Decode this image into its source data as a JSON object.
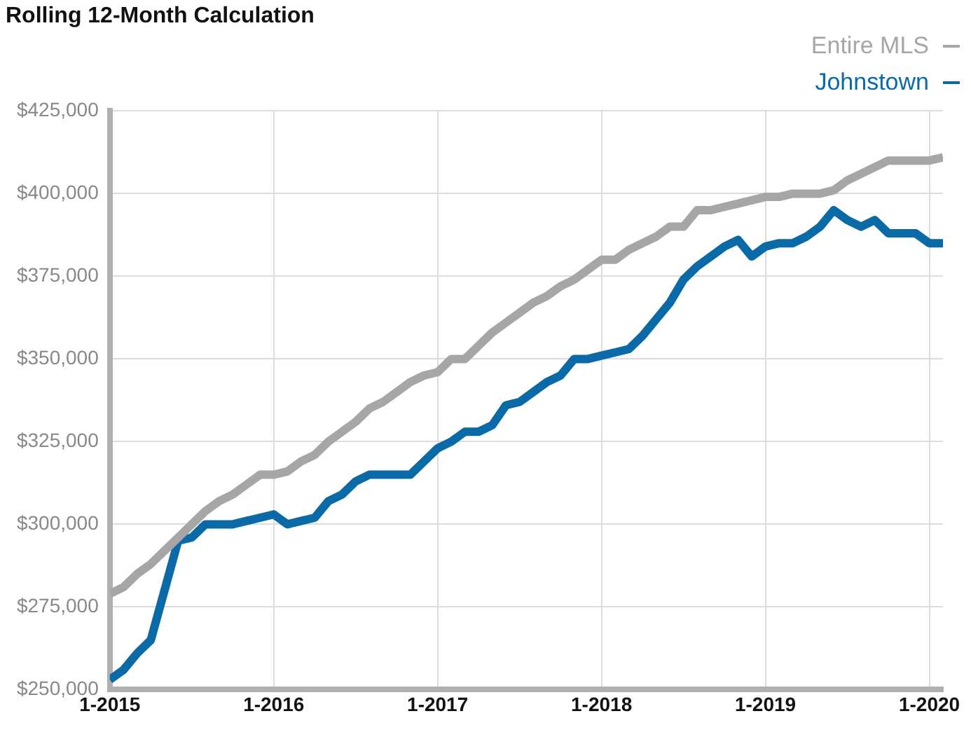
{
  "chart_data": {
    "type": "line",
    "title": "Rolling 12-Month Calculation",
    "x": [
      "2015-01",
      "2015-02",
      "2015-03",
      "2015-04",
      "2015-05",
      "2015-06",
      "2015-07",
      "2015-08",
      "2015-09",
      "2015-10",
      "2015-11",
      "2015-12",
      "2016-01",
      "2016-02",
      "2016-03",
      "2016-04",
      "2016-05",
      "2016-06",
      "2016-07",
      "2016-08",
      "2016-09",
      "2016-10",
      "2016-11",
      "2016-12",
      "2017-01",
      "2017-02",
      "2017-03",
      "2017-04",
      "2017-05",
      "2017-06",
      "2017-07",
      "2017-08",
      "2017-09",
      "2017-10",
      "2017-11",
      "2017-12",
      "2018-01",
      "2018-02",
      "2018-03",
      "2018-04",
      "2018-05",
      "2018-06",
      "2018-07",
      "2018-08",
      "2018-09",
      "2018-10",
      "2018-11",
      "2018-12",
      "2019-01",
      "2019-02",
      "2019-03",
      "2019-04",
      "2019-05",
      "2019-06",
      "2019-07",
      "2019-08",
      "2019-09",
      "2019-10",
      "2019-11",
      "2019-12",
      "2020-01",
      "2020-02"
    ],
    "series": [
      {
        "name": "Entire MLS",
        "color": "#a6a6a6",
        "values": [
          279000,
          281000,
          285000,
          288000,
          292000,
          296000,
          300000,
          304000,
          307000,
          309000,
          312000,
          315000,
          315000,
          316000,
          319000,
          321000,
          325000,
          328000,
          331000,
          335000,
          337000,
          340000,
          343000,
          345000,
          346000,
          350000,
          350000,
          354000,
          358000,
          361000,
          364000,
          367000,
          369000,
          372000,
          374000,
          377000,
          380000,
          380000,
          383000,
          385000,
          387000,
          390000,
          390000,
          395000,
          395000,
          396000,
          397000,
          398000,
          399000,
          399000,
          400000,
          400000,
          400000,
          401000,
          404000,
          406000,
          408000,
          410000,
          410000,
          410000,
          410000,
          411000
        ]
      },
      {
        "name": "Johnstown",
        "color": "#0a6aa8",
        "values": [
          253000,
          256000,
          261000,
          265000,
          280000,
          295000,
          296000,
          300000,
          300000,
          300000,
          301000,
          302000,
          303000,
          300000,
          301000,
          302000,
          307000,
          309000,
          313000,
          315000,
          315000,
          315000,
          315000,
          319000,
          323000,
          325000,
          328000,
          328000,
          330000,
          336000,
          337000,
          340000,
          343000,
          345000,
          350000,
          350000,
          351000,
          352000,
          353000,
          357000,
          362000,
          367000,
          374000,
          378000,
          381000,
          384000,
          386000,
          381000,
          384000,
          385000,
          385000,
          387000,
          390000,
          395000,
          392000,
          390000,
          392000,
          388000,
          388000,
          388000,
          385000,
          385000
        ]
      }
    ],
    "xlim": [
      "2015-01",
      "2020-02"
    ],
    "xticks": [
      {
        "value": "2015-01",
        "label": "1-2015"
      },
      {
        "value": "2016-01",
        "label": "1-2016"
      },
      {
        "value": "2017-01",
        "label": "1-2017"
      },
      {
        "value": "2018-01",
        "label": "1-2018"
      },
      {
        "value": "2019-01",
        "label": "1-2019"
      },
      {
        "value": "2020-01",
        "label": "1-2020"
      }
    ],
    "ylim": [
      250000,
      425000
    ],
    "yticks": [
      {
        "value": 250000,
        "label": "$250,000"
      },
      {
        "value": 275000,
        "label": "$275,000"
      },
      {
        "value": 300000,
        "label": "$300,000"
      },
      {
        "value": 325000,
        "label": "$325,000"
      },
      {
        "value": 350000,
        "label": "$350,000"
      },
      {
        "value": 375000,
        "label": "$375,000"
      },
      {
        "value": 400000,
        "label": "$400,000"
      },
      {
        "value": 425000,
        "label": "$425,000"
      }
    ],
    "grid": true,
    "legend": "top right",
    "marker": "none",
    "line_style": "solid"
  }
}
